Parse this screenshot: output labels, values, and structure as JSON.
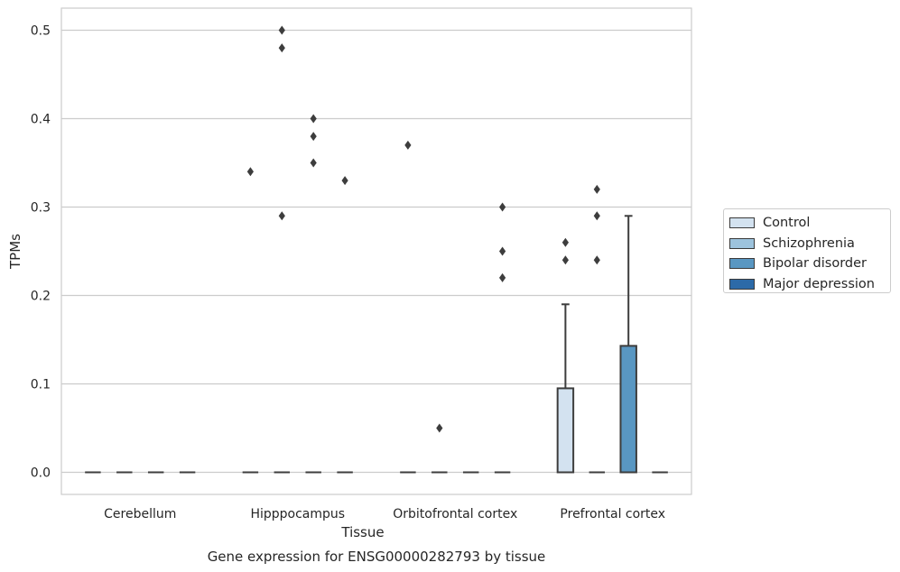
{
  "chart_data": {
    "type": "box",
    "title": "",
    "caption": "Gene expression for ENSG00000282793 by tissue",
    "xlabel": "Tissue",
    "ylabel": "TPMs",
    "ylim": [
      -0.025,
      0.525
    ],
    "yticks": [
      0.0,
      0.1,
      0.2,
      0.3,
      0.4,
      0.5
    ],
    "ytick_labels": [
      "0.0",
      "0.1",
      "0.2",
      "0.3",
      "0.4",
      "0.5"
    ],
    "grid": "horizontal",
    "legend_position": "right",
    "categories": [
      "Cerebellum",
      "Hipppocampus",
      "Orbitofrontal cortex",
      "Prefrontal cortex"
    ],
    "series": [
      {
        "name": "Control",
        "color": "#d3e2f0",
        "boxes": [
          {
            "q1": 0,
            "median": 0,
            "q3": 0,
            "whislo": 0,
            "whishi": 0,
            "fliers": []
          },
          {
            "q1": 0,
            "median": 0,
            "q3": 0,
            "whislo": 0,
            "whishi": 0,
            "fliers": [
              0.34
            ]
          },
          {
            "q1": 0,
            "median": 0,
            "q3": 0,
            "whislo": 0,
            "whishi": 0,
            "fliers": [
              0.37
            ]
          },
          {
            "q1": 0,
            "median": 0,
            "q3": 0.095,
            "whislo": 0,
            "whishi": 0.19,
            "fliers": [
              0.26,
              0.24
            ]
          }
        ]
      },
      {
        "name": "Schizophrenia",
        "color": "#9dc3dd",
        "boxes": [
          {
            "q1": 0,
            "median": 0,
            "q3": 0,
            "whislo": 0,
            "whishi": 0,
            "fliers": []
          },
          {
            "q1": 0,
            "median": 0,
            "q3": 0,
            "whislo": 0,
            "whishi": 0,
            "fliers": [
              0.5,
              0.48,
              0.29
            ]
          },
          {
            "q1": 0,
            "median": 0,
            "q3": 0,
            "whislo": 0,
            "whishi": 0,
            "fliers": [
              0.05
            ]
          },
          {
            "q1": 0,
            "median": 0,
            "q3": 0,
            "whislo": 0,
            "whishi": 0,
            "fliers": [
              0.32,
              0.29,
              0.24
            ]
          }
        ]
      },
      {
        "name": "Bipolar disorder",
        "color": "#5997c2",
        "boxes": [
          {
            "q1": 0,
            "median": 0,
            "q3": 0,
            "whislo": 0,
            "whishi": 0,
            "fliers": []
          },
          {
            "q1": 0,
            "median": 0,
            "q3": 0,
            "whislo": 0,
            "whishi": 0,
            "fliers": [
              0.4,
              0.38,
              0.35
            ]
          },
          {
            "q1": 0,
            "median": 0,
            "q3": 0,
            "whislo": 0,
            "whishi": 0,
            "fliers": []
          },
          {
            "q1": 0,
            "median": 0,
            "q3": 0.143,
            "whislo": 0,
            "whishi": 0.29,
            "fliers": []
          }
        ]
      },
      {
        "name": "Major depression",
        "color": "#2c6aa8",
        "boxes": [
          {
            "q1": 0,
            "median": 0,
            "q3": 0,
            "whislo": 0,
            "whishi": 0,
            "fliers": []
          },
          {
            "q1": 0,
            "median": 0,
            "q3": 0,
            "whislo": 0,
            "whishi": 0,
            "fliers": [
              0.33
            ]
          },
          {
            "q1": 0,
            "median": 0,
            "q3": 0,
            "whislo": 0,
            "whishi": 0,
            "fliers": [
              0.3,
              0.25,
              0.22
            ]
          },
          {
            "q1": 0,
            "median": 0,
            "q3": 0,
            "whislo": 0,
            "whishi": 0,
            "fliers": []
          }
        ]
      }
    ]
  }
}
